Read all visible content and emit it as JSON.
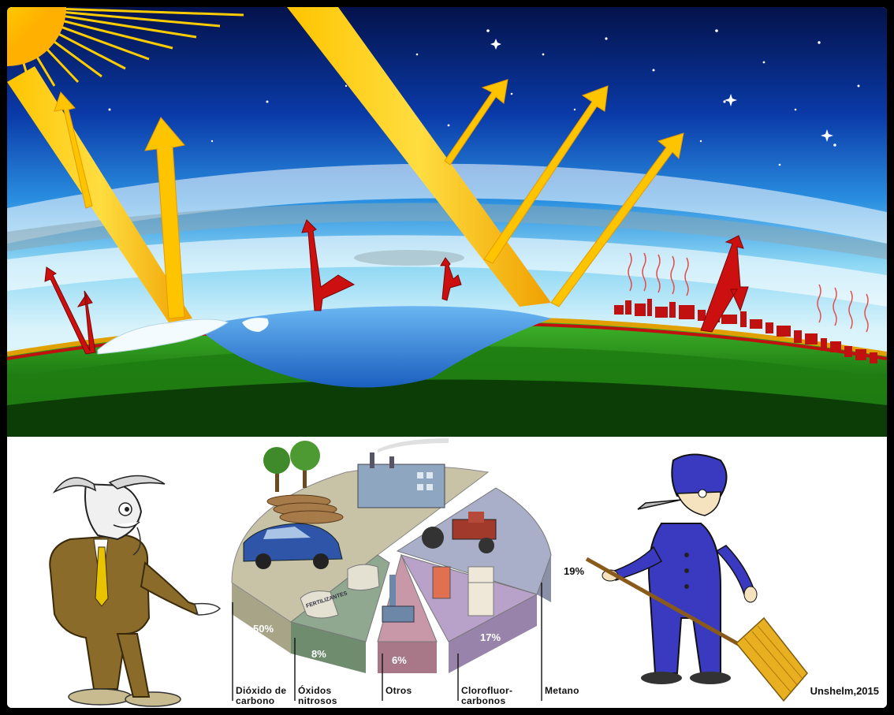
{
  "pie": {
    "segments": [
      {
        "percent": "50%",
        "label": "Dióxido de carbono",
        "line1": "Dióxido de",
        "line2": "carbono",
        "color": "#c8c3a6"
      },
      {
        "percent": "8%",
        "label": "Óxidos nitrosos",
        "line1": "Óxidos",
        "line2": "nitrosos",
        "color": "#8fa88f"
      },
      {
        "percent": "6%",
        "label": "Otros",
        "line1": "Otros",
        "line2": "",
        "color": "#c898a8"
      },
      {
        "percent": "17%",
        "label": "Clorofluorcarbonos",
        "line1": "Clorofluor-",
        "line2": "carbonos",
        "color": "#b9a2c9"
      },
      {
        "percent": "19%",
        "label": "Metano",
        "line1": "Metano",
        "line2": "",
        "color": "#a9afc8"
      }
    ],
    "sack_text": "FERTILIZANTES"
  },
  "credit": "Unshelm,2015",
  "colors": {
    "sunlight": "#f7b800",
    "infrared": "#cc1010",
    "sky_top": "#061a5c",
    "ocean": "#2f7fd9",
    "land": "#2e9e20"
  },
  "icons": [
    "sun-icon",
    "car-icon",
    "factory-icon",
    "tree-icon",
    "tractor-icon",
    "fridge-icon",
    "goat-figure",
    "bird-figure",
    "broom-icon"
  ]
}
